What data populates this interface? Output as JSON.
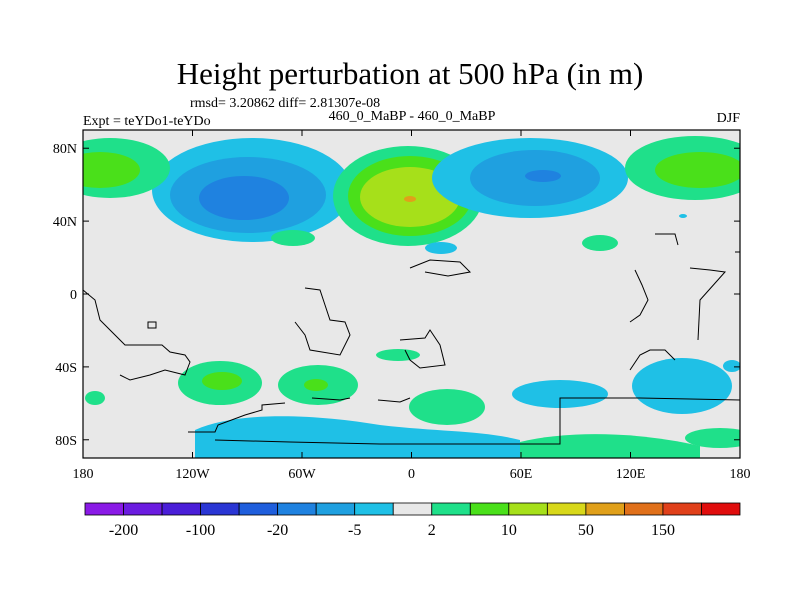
{
  "chart_data": {
    "type": "heatmap",
    "title": "Height perturbation at 500 hPa (in m)",
    "stats_text": "rmsd= 3.20862 diff= 2.81307e-08",
    "left_label": "Expt = teYDo1-teYDo",
    "center_label": "460_0_MaBP - 460_0_MaBP",
    "right_label": "DJF",
    "xlim": [
      -180,
      180
    ],
    "ylim": [
      -90,
      90
    ],
    "x_ticks": [
      {
        "value": -180,
        "label": "180"
      },
      {
        "value": -120,
        "label": "120W"
      },
      {
        "value": -60,
        "label": "60W"
      },
      {
        "value": 0,
        "label": "0"
      },
      {
        "value": 60,
        "label": "60E"
      },
      {
        "value": 120,
        "label": "120E"
      },
      {
        "value": 180,
        "label": "180"
      }
    ],
    "y_ticks": [
      {
        "value": 80,
        "label": "80N"
      },
      {
        "value": 40,
        "label": "40N"
      },
      {
        "value": 0,
        "label": "0"
      },
      {
        "value": -40,
        "label": "40S"
      },
      {
        "value": -80,
        "label": "80S"
      }
    ],
    "levels": [
      -200,
      -150,
      -100,
      -50,
      -20,
      -10,
      -5,
      -2,
      2,
      5,
      10,
      20,
      50,
      100,
      150,
      200
    ],
    "colorbar_colors": [
      "#8a1ae6",
      "#6b1ce0",
      "#4a1ed8",
      "#2a36d4",
      "#1f5edc",
      "#1f82e0",
      "#1fa0e0",
      "#1fc0e6",
      "#e8e8e8",
      "#1fe08a",
      "#4ae01a",
      "#a6e01a",
      "#d8d81a",
      "#e0a01a",
      "#e0701a",
      "#e0401a",
      "#e00d0d"
    ],
    "colorbar_labels": [
      {
        "level_index": 0,
        "label": "-200"
      },
      {
        "level_index": 2,
        "label": "-100"
      },
      {
        "level_index": 4,
        "label": "-20"
      },
      {
        "level_index": 6,
        "label": "-5"
      },
      {
        "level_index": 8,
        "label": "2"
      },
      {
        "level_index": 10,
        "label": "10"
      },
      {
        "level_index": 12,
        "label": "50"
      },
      {
        "level_index": 14,
        "label": "150"
      }
    ],
    "background_color": "#e8e8e8"
  }
}
